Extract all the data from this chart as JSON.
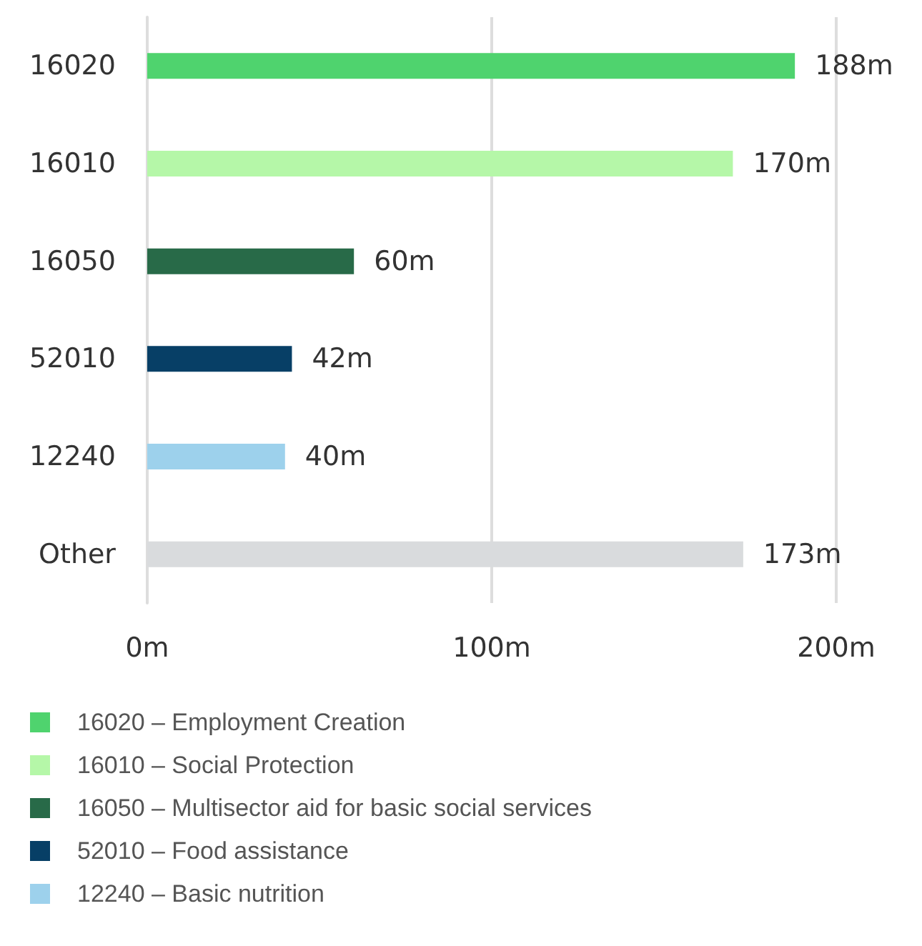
{
  "chart_data": {
    "type": "bar",
    "orientation": "horizontal",
    "stacked": true,
    "categories": [
      "16020",
      "16010",
      "16050",
      "52010",
      "12240",
      "Other"
    ],
    "series": [
      {
        "name": "16020 – Employment Creation",
        "color": "#4fd36e",
        "values": [
          188,
          null,
          null,
          null,
          null,
          null
        ],
        "value_labels": [
          "188m",
          null,
          null,
          null,
          null,
          null
        ]
      },
      {
        "name": "16010 – Social Protection",
        "color": "#b5f7a8",
        "values": [
          null,
          170,
          null,
          null,
          null,
          null
        ],
        "value_labels": [
          null,
          "170m",
          null,
          null,
          null,
          null
        ]
      },
      {
        "name": "16050 – Multisector aid for basic social services",
        "color": "#286a48",
        "values": [
          null,
          null,
          60,
          null,
          null,
          null
        ],
        "value_labels": [
          null,
          null,
          "60m",
          null,
          null,
          null
        ]
      },
      {
        "name": "52010 – Food assistance",
        "color": "#073f66",
        "values": [
          null,
          null,
          null,
          42,
          null,
          null
        ],
        "value_labels": [
          null,
          null,
          null,
          "42m",
          null,
          null
        ]
      },
      {
        "name": "12240 – Basic nutrition",
        "color": "#9dd1ec",
        "values": [
          null,
          null,
          null,
          null,
          40,
          null
        ],
        "value_labels": [
          null,
          null,
          null,
          null,
          "40m",
          null
        ]
      },
      {
        "color": "#d9dbdd",
        "values": [
          null,
          null,
          null,
          null,
          null,
          173
        ],
        "value_labels": [
          null,
          null,
          null,
          null,
          null,
          "173m"
        ]
      }
    ],
    "xlim": [
      0,
      200
    ],
    "xticks": [
      {
        "value": 0,
        "label": "0m"
      },
      {
        "value": 100,
        "label": "100m"
      },
      {
        "value": 200,
        "label": "200m"
      }
    ],
    "grid": "x",
    "legend": "bottom"
  }
}
